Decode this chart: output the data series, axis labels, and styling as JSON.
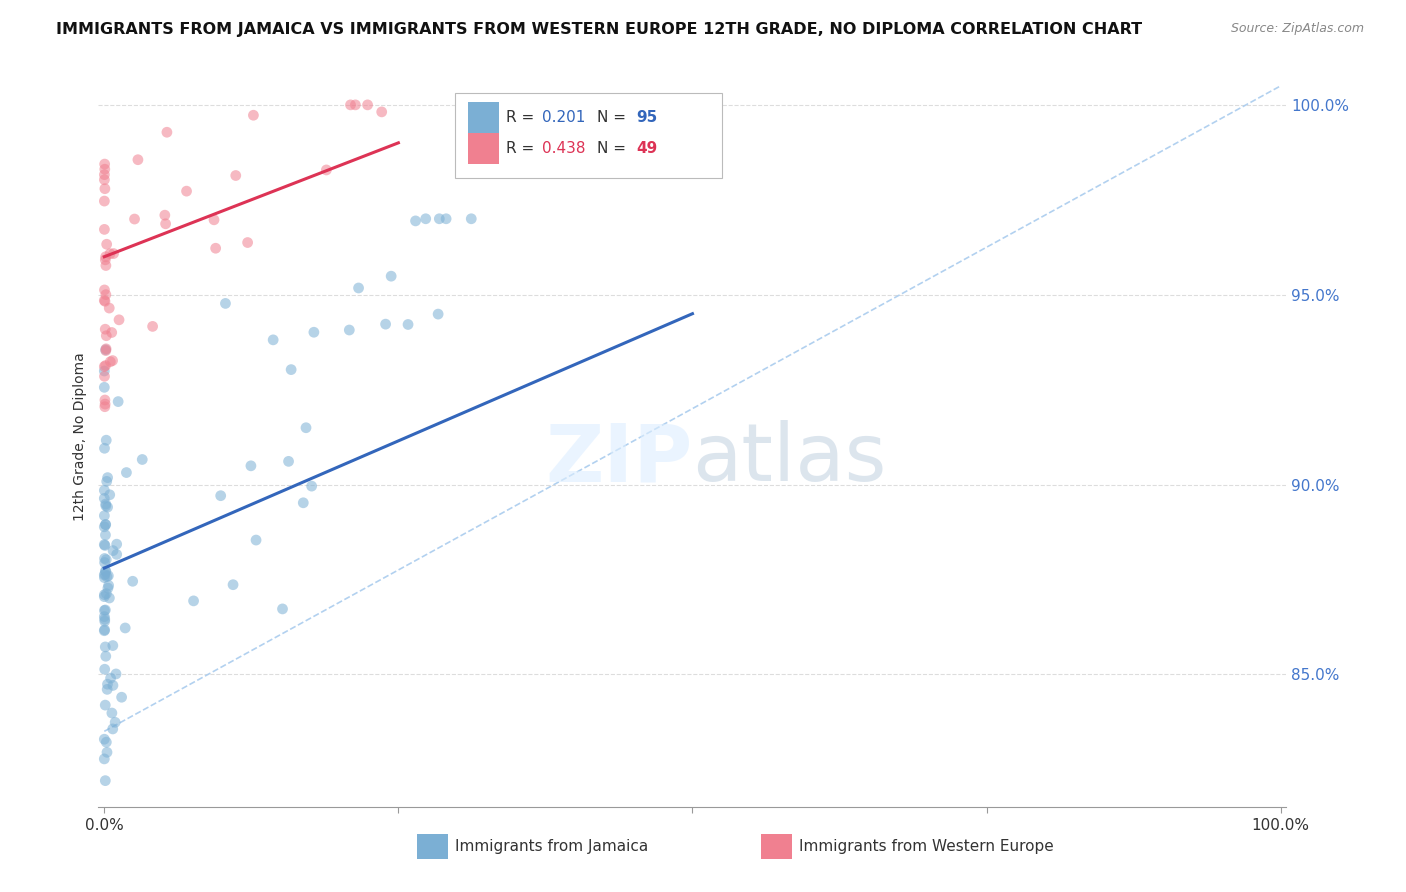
{
  "title": "IMMIGRANTS FROM JAMAICA VS IMMIGRANTS FROM WESTERN EUROPE 12TH GRADE, NO DIPLOMA CORRELATION CHART",
  "source": "Source: ZipAtlas.com",
  "xlabel_blue": "Immigrants from Jamaica",
  "xlabel_pink": "Immigrants from Western Europe",
  "ylabel": "12th Grade, No Diploma",
  "r_blue": 0.201,
  "n_blue": 95,
  "r_pink": 0.438,
  "n_pink": 49,
  "color_blue": "#7BAFD4",
  "color_pink": "#F08090",
  "color_trendline_blue": "#3366BB",
  "color_trendline_pink": "#DD3355",
  "xlim": [
    -0.005,
    1.005
  ],
  "ylim": [
    0.815,
    1.01
  ],
  "ytick_positions": [
    0.85,
    0.9,
    0.95,
    1.0
  ],
  "ytick_labels": [
    "85.0%",
    "90.0%",
    "95.0%",
    "100.0%"
  ],
  "watermark_zip": "ZIP",
  "watermark_atlas": "atlas",
  "background_color": "#FFFFFF",
  "grid_color": "#DDDDDD",
  "ref_line_color": "#AACCEE",
  "ref_line_start_x": 0.0,
  "ref_line_end_x": 1.0,
  "ref_line_start_y": 0.835,
  "ref_line_end_y": 1.005,
  "blue_trendline_x0": 0.0,
  "blue_trendline_x1": 0.5,
  "blue_trendline_y0": 0.878,
  "blue_trendline_y1": 0.945,
  "pink_trendline_x0": 0.0,
  "pink_trendline_x1": 0.25,
  "pink_trendline_y0": 0.96,
  "pink_trendline_y1": 0.99
}
